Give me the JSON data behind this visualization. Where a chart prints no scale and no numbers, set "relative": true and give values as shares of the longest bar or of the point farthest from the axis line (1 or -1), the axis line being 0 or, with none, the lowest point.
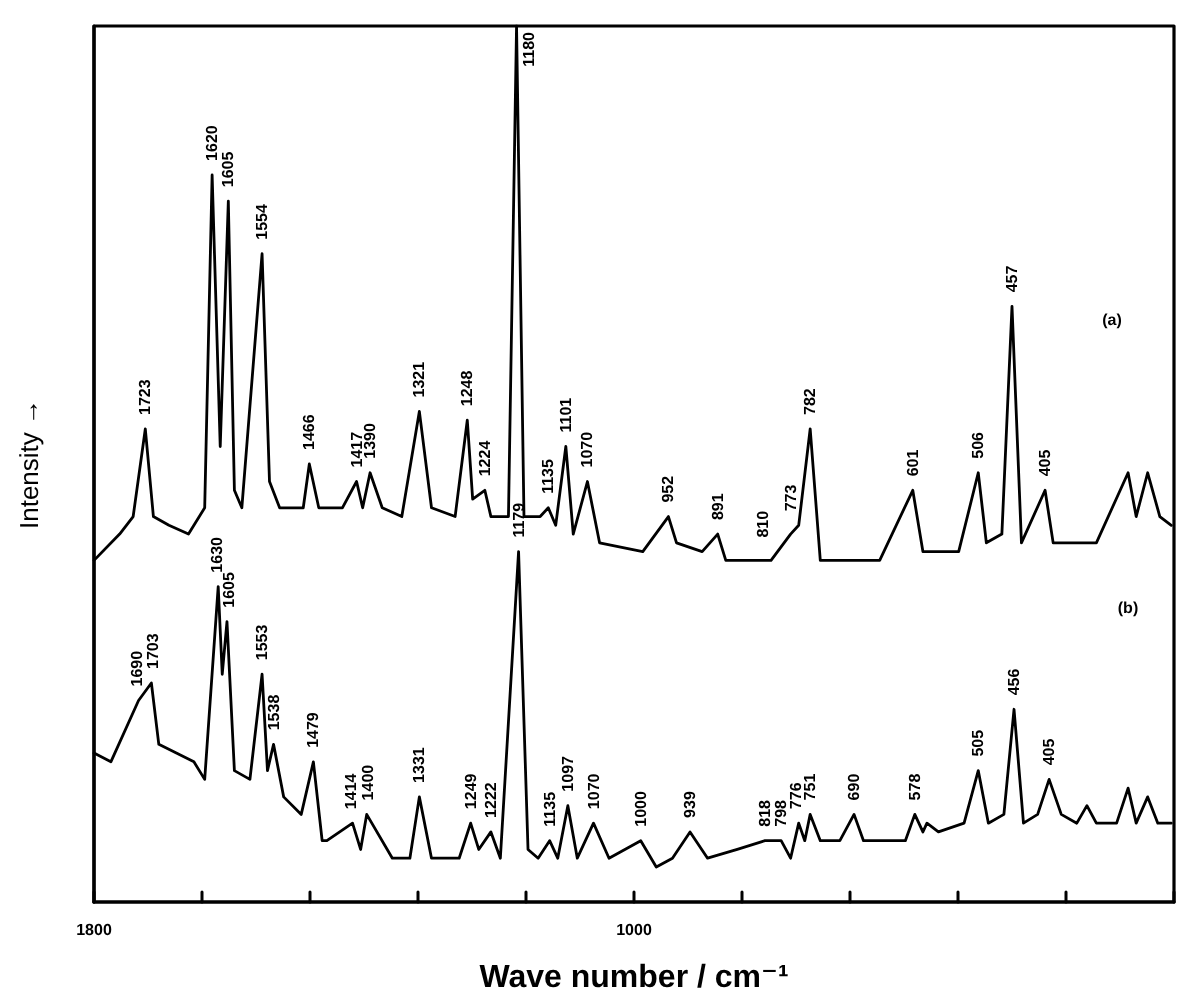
{
  "chart_data": {
    "type": "line",
    "relative": true,
    "xlabel": "Wave number / cm⁻¹",
    "ylabel": "Intensity →",
    "xlim": [
      1800,
      200
    ],
    "xticks": [
      {
        "value": 1800,
        "label": "1800"
      },
      {
        "value": 1640,
        "label": null
      },
      {
        "value": 1480,
        "label": null
      },
      {
        "value": 1320,
        "label": null
      },
      {
        "value": 1160,
        "label": null
      },
      {
        "value": 1000,
        "label": "1000"
      },
      {
        "value": 840,
        "label": null
      },
      {
        "value": 680,
        "label": null
      },
      {
        "value": 520,
        "label": null
      },
      {
        "value": 360,
        "label": null
      },
      {
        "value": 200,
        "label": null
      }
    ],
    "tick_labels": "x",
    "grid": false,
    "marker": "none",
    "line_style": "solid",
    "series": [
      {
        "color": "#000000",
        "x": [
          1800,
          1762,
          1742,
          1724,
          1712,
          1689,
          1660,
          1636,
          1625,
          1613,
          1601,
          1592,
          1581,
          1551,
          1540,
          1525,
          1490,
          1481,
          1467,
          1432,
          1411,
          1402,
          1391,
          1373,
          1344,
          1318,
          1300,
          1265,
          1247,
          1239,
          1221,
          1212,
          1186,
          1174,
          1163,
          1139,
          1127,
          1116,
          1101,
          1090,
          1069,
          1051,
          987,
          949,
          937,
          899,
          876,
          864,
          797,
          768,
          756,
          739,
          724,
          636,
          587,
          572,
          519,
          490,
          478,
          455,
          440,
          426,
          391,
          379,
          315,
          268,
          256,
          239,
          221,
          204
        ],
        "values": [
          0.39,
          0.42,
          0.44,
          0.54,
          0.44,
          0.43,
          0.42,
          0.45,
          0.83,
          0.52,
          0.8,
          0.47,
          0.45,
          0.74,
          0.48,
          0.45,
          0.45,
          0.5,
          0.45,
          0.45,
          0.48,
          0.45,
          0.49,
          0.45,
          0.44,
          0.56,
          0.45,
          0.44,
          0.55,
          0.46,
          0.47,
          0.44,
          0.44,
          1.0,
          0.44,
          0.44,
          0.45,
          0.43,
          0.52,
          0.42,
          0.48,
          0.41,
          0.4,
          0.44,
          0.41,
          0.4,
          0.42,
          0.39,
          0.39,
          0.42,
          0.43,
          0.54,
          0.39,
          0.39,
          0.47,
          0.4,
          0.4,
          0.49,
          0.41,
          0.42,
          0.68,
          0.41,
          0.47,
          0.41,
          0.41,
          0.49,
          0.44,
          0.49,
          0.44,
          0.43
        ]
      },
      {
        "color": "#000000",
        "x": [
          1800,
          1775,
          1734,
          1715,
          1704,
          1652,
          1636,
          1616,
          1610,
          1603,
          1592,
          1569,
          1551,
          1543,
          1534,
          1519,
          1493,
          1475,
          1462,
          1455,
          1417,
          1405,
          1396,
          1358,
          1332,
          1318,
          1300,
          1259,
          1242,
          1230,
          1212,
          1198,
          1171,
          1157,
          1142,
          1125,
          1113,
          1098,
          1084,
          1060,
          1037,
          990,
          967,
          943,
          917,
          891,
          847,
          806,
          782,
          768,
          756,
          747,
          739,
          724,
          695,
          674,
          660,
          627,
          598,
          584,
          572,
          566,
          549,
          511,
          490,
          475,
          452,
          437,
          423,
          402,
          385,
          367,
          344,
          329,
          315,
          285,
          268,
          256,
          239,
          224,
          204
        ],
        "values": [
          0.17,
          0.16,
          0.23,
          0.25,
          0.18,
          0.16,
          0.14,
          0.36,
          0.26,
          0.32,
          0.15,
          0.14,
          0.26,
          0.15,
          0.18,
          0.12,
          0.1,
          0.16,
          0.07,
          0.07,
          0.09,
          0.06,
          0.1,
          0.05,
          0.05,
          0.12,
          0.05,
          0.05,
          0.09,
          0.06,
          0.08,
          0.05,
          0.4,
          0.06,
          0.05,
          0.07,
          0.05,
          0.11,
          0.05,
          0.09,
          0.05,
          0.07,
          0.04,
          0.05,
          0.08,
          0.05,
          0.06,
          0.07,
          0.07,
          0.05,
          0.09,
          0.07,
          0.1,
          0.07,
          0.07,
          0.1,
          0.07,
          0.07,
          0.07,
          0.1,
          0.08,
          0.09,
          0.08,
          0.09,
          0.15,
          0.09,
          0.1,
          0.22,
          0.09,
          0.1,
          0.14,
          0.1,
          0.09,
          0.11,
          0.09,
          0.09,
          0.13,
          0.09,
          0.12,
          0.09,
          0.09
        ]
      }
    ],
    "annotations": [
      {
        "text": "1723",
        "x": 1724,
        "y": 0.54
      },
      {
        "text": "1620",
        "x": 1625,
        "y": 0.83
      },
      {
        "text": "1605",
        "x": 1601,
        "y": 0.8
      },
      {
        "text": "1554",
        "x": 1551,
        "y": 0.74
      },
      {
        "text": "1466",
        "x": 1481,
        "y": 0.5
      },
      {
        "text": "1417",
        "x": 1411,
        "y": 0.48
      },
      {
        "text": "1390",
        "x": 1391,
        "y": 0.49
      },
      {
        "text": "1321",
        "x": 1318,
        "y": 0.56
      },
      {
        "text": "1248",
        "x": 1247,
        "y": 0.55
      },
      {
        "text": "1224",
        "x": 1221,
        "y": 0.47
      },
      {
        "text": "1180",
        "x": 1174,
        "y": 1.0
      },
      {
        "text": "1135",
        "x": 1127,
        "y": 0.45
      },
      {
        "text": "1101",
        "x": 1101,
        "y": 0.52
      },
      {
        "text": "1070",
        "x": 1069,
        "y": 0.48
      },
      {
        "text": "952",
        "x": 949,
        "y": 0.44
      },
      {
        "text": "891",
        "x": 876,
        "y": 0.42
      },
      {
        "text": "810",
        "x": 809,
        "y": 0.4
      },
      {
        "text": "773",
        "x": 768,
        "y": 0.43
      },
      {
        "text": "782",
        "x": 739,
        "y": 0.54
      },
      {
        "text": "601",
        "x": 587,
        "y": 0.47
      },
      {
        "text": "506",
        "x": 490,
        "y": 0.49
      },
      {
        "text": "457",
        "x": 440,
        "y": 0.68
      },
      {
        "text": "405",
        "x": 391,
        "y": 0.47
      },
      "(a)",
      "(b)",
      {
        "text": "1690",
        "x": 1736,
        "y": 0.23
      },
      {
        "text": "1703",
        "x": 1713,
        "y": 0.25
      },
      {
        "text": "1630",
        "x": 1618,
        "y": 0.36
      },
      {
        "text": "1605",
        "x": 1600,
        "y": 0.32
      },
      {
        "text": "1553",
        "x": 1551,
        "y": 0.26
      },
      {
        "text": "1538",
        "x": 1534,
        "y": 0.18
      },
      {
        "text": "1479",
        "x": 1475,
        "y": 0.16
      },
      {
        "text": "1414",
        "x": 1419,
        "y": 0.09
      },
      {
        "text": "1400",
        "x": 1394,
        "y": 0.1
      },
      {
        "text": "1331",
        "x": 1318,
        "y": 0.12
      },
      {
        "text": "1249",
        "x": 1242,
        "y": 0.09
      },
      {
        "text": "1222",
        "x": 1212,
        "y": 0.08
      },
      {
        "text": "1179",
        "x": 1171,
        "y": 0.4
      },
      {
        "text": "1135",
        "x": 1125,
        "y": 0.07
      },
      {
        "text": "1097",
        "x": 1098,
        "y": 0.11
      },
      {
        "text": "1070",
        "x": 1060,
        "y": 0.09
      },
      {
        "text": "1000",
        "x": 990,
        "y": 0.07
      },
      {
        "text": "939",
        "x": 917,
        "y": 0.08
      },
      {
        "text": "818",
        "x": 806,
        "y": 0.07
      },
      {
        "text": "798",
        "x": 782,
        "y": 0.07
      },
      {
        "text": "776",
        "x": 760,
        "y": 0.09
      },
      {
        "text": "751",
        "x": 739,
        "y": 0.1
      },
      {
        "text": "690",
        "x": 674,
        "y": 0.1
      },
      {
        "text": "578",
        "x": 584,
        "y": 0.1
      },
      {
        "text": "505",
        "x": 490,
        "y": 0.15
      },
      {
        "text": "456",
        "x": 437,
        "y": 0.22
      },
      {
        "text": "405",
        "x": 385,
        "y": 0.14
      }
    ]
  }
}
